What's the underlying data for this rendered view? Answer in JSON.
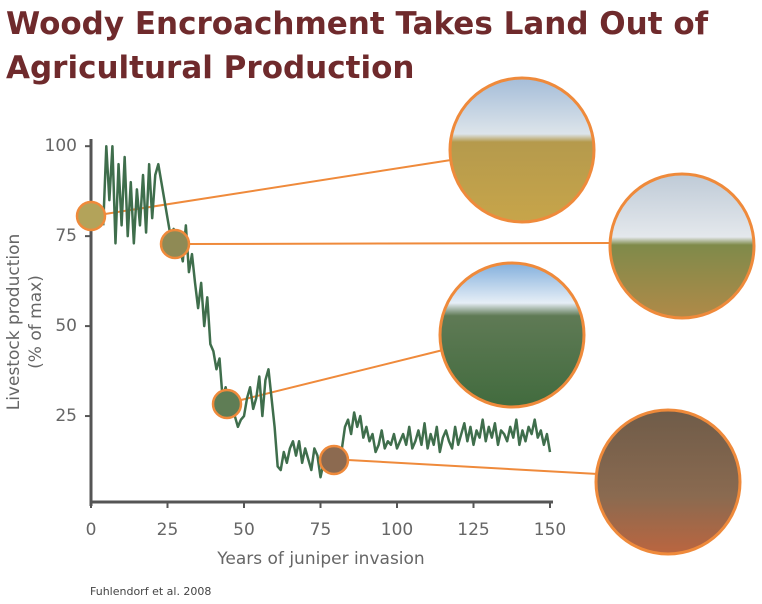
{
  "chart_data": {
    "type": "line",
    "title": "Woody Encroachment Takes Land Out of Agricultural Production",
    "xlabel": "Years of juniper invasion",
    "ylabel": [
      "Livestock production",
      "(% of max)"
    ],
    "source": "Fuhlendorf et al. 2008",
    "xlim": [
      0,
      150
    ],
    "ylim": [
      0,
      102
    ],
    "xticks": [
      0,
      25,
      50,
      75,
      100,
      125,
      150
    ],
    "yticks": [
      25,
      50,
      75,
      100
    ],
    "series": [
      {
        "name": "Livestock production",
        "color": "#3f6e4c",
        "x": [
          4,
          5,
          6,
          7,
          8,
          9,
          10,
          11,
          12,
          13,
          14,
          15,
          16,
          17,
          18,
          19,
          20,
          21,
          22,
          23,
          24,
          25,
          26,
          27,
          28,
          29,
          30,
          31,
          32,
          33,
          34,
          35,
          36,
          37,
          38,
          39,
          40,
          41,
          42,
          43,
          44,
          45,
          46,
          47,
          48,
          49,
          50,
          51,
          52,
          53,
          54,
          55,
          56,
          57,
          58,
          59,
          60,
          61,
          62,
          63,
          64,
          65,
          66,
          67,
          68,
          69,
          70,
          71,
          72,
          73,
          74,
          75,
          76,
          77,
          78,
          79,
          80,
          81,
          82,
          83,
          84,
          85,
          86,
          87,
          88,
          89,
          90,
          91,
          92,
          93,
          94,
          95,
          96,
          97,
          98,
          99,
          100,
          101,
          102,
          103,
          104,
          105,
          106,
          107,
          108,
          109,
          110,
          111,
          112,
          113,
          114,
          115,
          116,
          117,
          118,
          119,
          120,
          121,
          122,
          123,
          124,
          125,
          126,
          127,
          128,
          129,
          130,
          131,
          132,
          133,
          134,
          135,
          136,
          137,
          138,
          139,
          140,
          141,
          142,
          143,
          144,
          145,
          146,
          147,
          148,
          149,
          150
        ],
        "values": [
          78,
          100,
          85,
          100,
          73,
          95,
          78,
          97,
          75,
          90,
          73,
          88,
          78,
          92,
          76,
          95,
          80,
          92,
          95,
          90,
          85,
          80,
          75,
          77,
          70,
          72,
          68,
          78,
          65,
          70,
          62,
          55,
          62,
          50,
          58,
          45,
          43,
          38,
          41,
          30,
          33,
          28,
          30,
          25,
          22,
          24,
          25,
          30,
          33,
          27,
          30,
          36,
          25,
          35,
          38,
          30,
          22,
          11,
          10,
          15,
          12,
          16,
          18,
          14,
          18,
          12,
          16,
          13,
          10,
          16,
          14,
          8,
          12,
          14,
          11,
          15,
          13,
          10,
          16,
          22,
          24,
          20,
          26,
          22,
          25,
          19,
          22,
          18,
          20,
          15,
          17,
          21,
          16,
          18,
          17,
          20,
          16,
          18,
          20,
          17,
          22,
          16,
          18,
          21,
          17,
          23,
          16,
          20,
          17,
          22,
          15,
          19,
          21,
          18,
          16,
          22,
          17,
          20,
          23,
          18,
          22,
          17,
          21,
          19,
          24,
          18,
          22,
          19,
          23,
          17,
          21,
          20,
          18,
          22,
          19,
          24,
          17,
          21,
          18,
          22,
          20,
          24,
          19,
          21,
          17,
          20,
          15
        ]
      }
    ]
  }
}
